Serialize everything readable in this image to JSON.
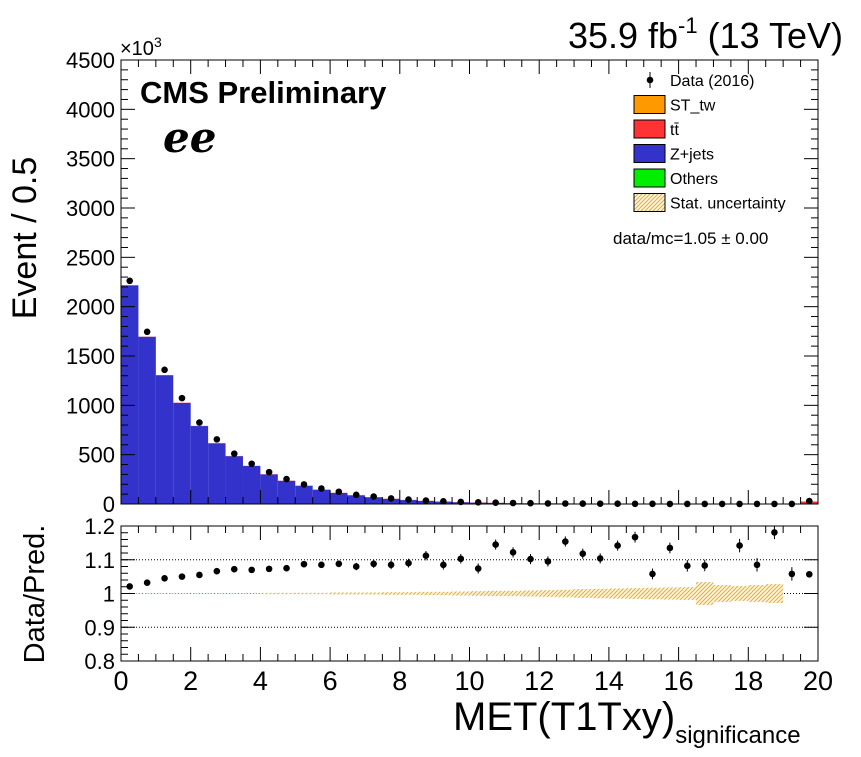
{
  "header": {
    "lumi": "35.9 fb",
    "lumi_exp": "-1",
    "energy": "(13 TeV)",
    "experiment": "CMS Preliminary",
    "channel": "ee",
    "ratio_text": "data/mc=1.05 ± 0.00",
    "exponent_base": "×10",
    "exponent_power": "3"
  },
  "legend": [
    {
      "label": "Data (2016)",
      "kind": "marker",
      "color": "#000000"
    },
    {
      "label": "ST_tw",
      "kind": "box",
      "color": "#ff9900"
    },
    {
      "label": "tt̄",
      "kind": "box",
      "color": "#ff3333"
    },
    {
      "label": "Z+jets",
      "kind": "box",
      "color": "#3333cc"
    },
    {
      "label": "Others",
      "kind": "box",
      "color": "#00ee00"
    },
    {
      "label": "Stat. uncertainty",
      "kind": "hatch",
      "color": "#e8c060"
    }
  ],
  "chart_data": [
    {
      "type": "bar",
      "panel": "main",
      "ylabel": "Event / 0.5",
      "xlim": [
        0,
        20
      ],
      "ylim": [
        0,
        4500
      ],
      "y_ticks": [
        "0",
        "500",
        "1000",
        "1500",
        "2000",
        "2500",
        "3000",
        "3500",
        "4000",
        "4500"
      ],
      "y_unit": "×10³ events",
      "bin_width": 0.5,
      "bin_low_edges": [
        0,
        0.5,
        1,
        1.5,
        2,
        2.5,
        3,
        3.5,
        4,
        4.5,
        5,
        5.5,
        6,
        6.5,
        7,
        7.5,
        8,
        8.5,
        9,
        9.5,
        10,
        10.5,
        11,
        11.5,
        12,
        12.5,
        13,
        13.5,
        14,
        14.5,
        15,
        15.5,
        16,
        16.5,
        17,
        17.5,
        18,
        18.5,
        19,
        19.5
      ],
      "series": [
        {
          "name": "Z+jets",
          "color": "#3333cc",
          "values": [
            2215,
            1695,
            1305,
            1025,
            790,
            615,
            485,
            385,
            300,
            235,
            185,
            145,
            112,
            88,
            68,
            52,
            40,
            31,
            24,
            18,
            14,
            11,
            8,
            6,
            5,
            4,
            3,
            2.5,
            2,
            1.5,
            1.2,
            1,
            0.8,
            0.6,
            0.5,
            0.4,
            0.3,
            0.3,
            0.3,
            0.3
          ]
        },
        {
          "name": "tt̄",
          "color": "#ff3333",
          "values": [
            2,
            2,
            2,
            2,
            2,
            2,
            2,
            2,
            2,
            2,
            2,
            2,
            2,
            2,
            2,
            2,
            2,
            2,
            2,
            2,
            2,
            2,
            2,
            2,
            2,
            2,
            2,
            2,
            2,
            2,
            2,
            2,
            2,
            2,
            2,
            2,
            2,
            2,
            2,
            25
          ]
        },
        {
          "name": "Data (2016)",
          "color": "#000000",
          "values": [
            2262,
            1745,
            1360,
            1073,
            825,
            655,
            510,
            408,
            323,
            253,
            198,
            157,
            124,
            93,
            75,
            56,
            45,
            35,
            27,
            21,
            17,
            13,
            10,
            8,
            6,
            5,
            4,
            3,
            3,
            2,
            2,
            1,
            1,
            1,
            1,
            1,
            1,
            1,
            1,
            30
          ]
        }
      ]
    },
    {
      "type": "scatter",
      "panel": "ratio",
      "xlabel": "MET(T1Txy)",
      "xlabel_sub": "significance",
      "ylabel": "Data/Pred.",
      "xlim": [
        0,
        20
      ],
      "ylim": [
        0.8,
        1.2
      ],
      "x_ticks": [
        "0",
        "2",
        "4",
        "6",
        "8",
        "10",
        "12",
        "14",
        "16",
        "18",
        "20"
      ],
      "y_ticks": [
        "0.8",
        "0.9",
        "1",
        "1.1",
        "1.2"
      ],
      "gridlines": [
        0.9,
        1.0,
        1.1
      ],
      "x": [
        0.25,
        0.75,
        1.25,
        1.75,
        2.25,
        2.75,
        3.25,
        3.75,
        4.25,
        4.75,
        5.25,
        5.75,
        6.25,
        6.75,
        7.25,
        7.75,
        8.25,
        8.75,
        9.25,
        9.75,
        10.25,
        10.75,
        11.25,
        11.75,
        12.25,
        12.75,
        13.25,
        13.75,
        14.25,
        14.75,
        15.25,
        15.75,
        16.25,
        16.75,
        17.75,
        18.25,
        18.75,
        19.25,
        19.75
      ],
      "y": [
        1.021,
        1.032,
        1.045,
        1.05,
        1.055,
        1.066,
        1.072,
        1.07,
        1.073,
        1.075,
        1.087,
        1.085,
        1.088,
        1.08,
        1.088,
        1.085,
        1.09,
        1.112,
        1.085,
        1.103,
        1.074,
        1.145,
        1.122,
        1.102,
        1.095,
        1.154,
        1.118,
        1.104,
        1.142,
        1.167,
        1.058,
        1.135,
        1.082,
        1.083,
        1.142,
        1.085,
        1.181,
        1.058,
        1.057
      ],
      "yerr": [
        0.003,
        0.004,
        0.004,
        0.005,
        0.005,
        0.006,
        0.006,
        0.007,
        0.007,
        0.008,
        0.009,
        0.009,
        0.01,
        0.011,
        0.012,
        0.013,
        0.013,
        0.014,
        0.014,
        0.014,
        0.015,
        0.015,
        0.015,
        0.015,
        0.015,
        0.015,
        0.015,
        0.015,
        0.015,
        0.016,
        0.016,
        0.016,
        0.017,
        0.017,
        0.02,
        0.02,
        0.02,
        0.02,
        0.002
      ],
      "stat_band": [
        0.001,
        0.001,
        0.001,
        0.001,
        0.001,
        0.001,
        0.001,
        0.001,
        0.002,
        0.002,
        0.002,
        0.002,
        0.003,
        0.003,
        0.003,
        0.004,
        0.004,
        0.005,
        0.005,
        0.006,
        0.007,
        0.008,
        0.008,
        0.009,
        0.01,
        0.011,
        0.013,
        0.014,
        0.015,
        0.016,
        0.017,
        0.018,
        0.019,
        0.034,
        0.025,
        0.022,
        0.025,
        0.028,
        0,
        0
      ]
    }
  ]
}
